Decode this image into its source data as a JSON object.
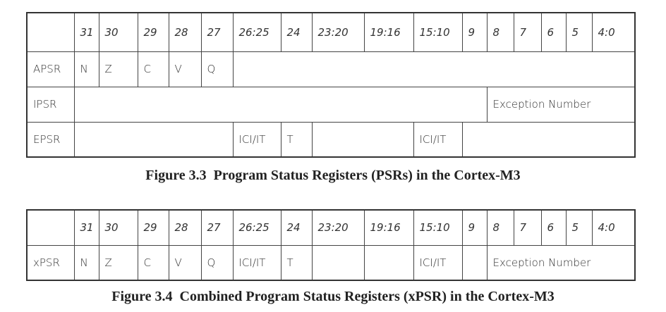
{
  "figures": [
    {
      "columns": [
        null,
        "31",
        "30",
        "29",
        "28",
        "27",
        "26:25",
        "24",
        "23:20",
        "19:16",
        "15:10",
        "9",
        "8",
        "7",
        "6",
        "5",
        "4:0"
      ],
      "rows": [
        [
          "APSR",
          "N",
          "Z",
          "C",
          "V",
          "Q",
          null
        ],
        [
          "IPSR",
          null,
          "Exception Number"
        ],
        [
          "EPSR",
          null,
          "ICI/IT",
          "T",
          null,
          "ICI/IT",
          null
        ]
      ],
      "caption": "Figure 3.3  Program Status Registers (PSRs) in the Cortex-M3"
    },
    {
      "columns": [
        null,
        "31",
        "30",
        "29",
        "28",
        "27",
        "26:25",
        "24",
        "23:20",
        "19:16",
        "15:10",
        "9",
        "8",
        "7",
        "6",
        "5",
        "4:0"
      ],
      "rows": [
        [
          "xPSR",
          "N",
          "Z",
          "C",
          "V",
          "Q",
          "ICI/IT",
          "T",
          null,
          null,
          "ICI/IT",
          null,
          "Exception Number"
        ]
      ],
      "caption": "Figure 3.4  Combined Program Status Registers (xPSR) in the Cortex-M3"
    }
  ]
}
